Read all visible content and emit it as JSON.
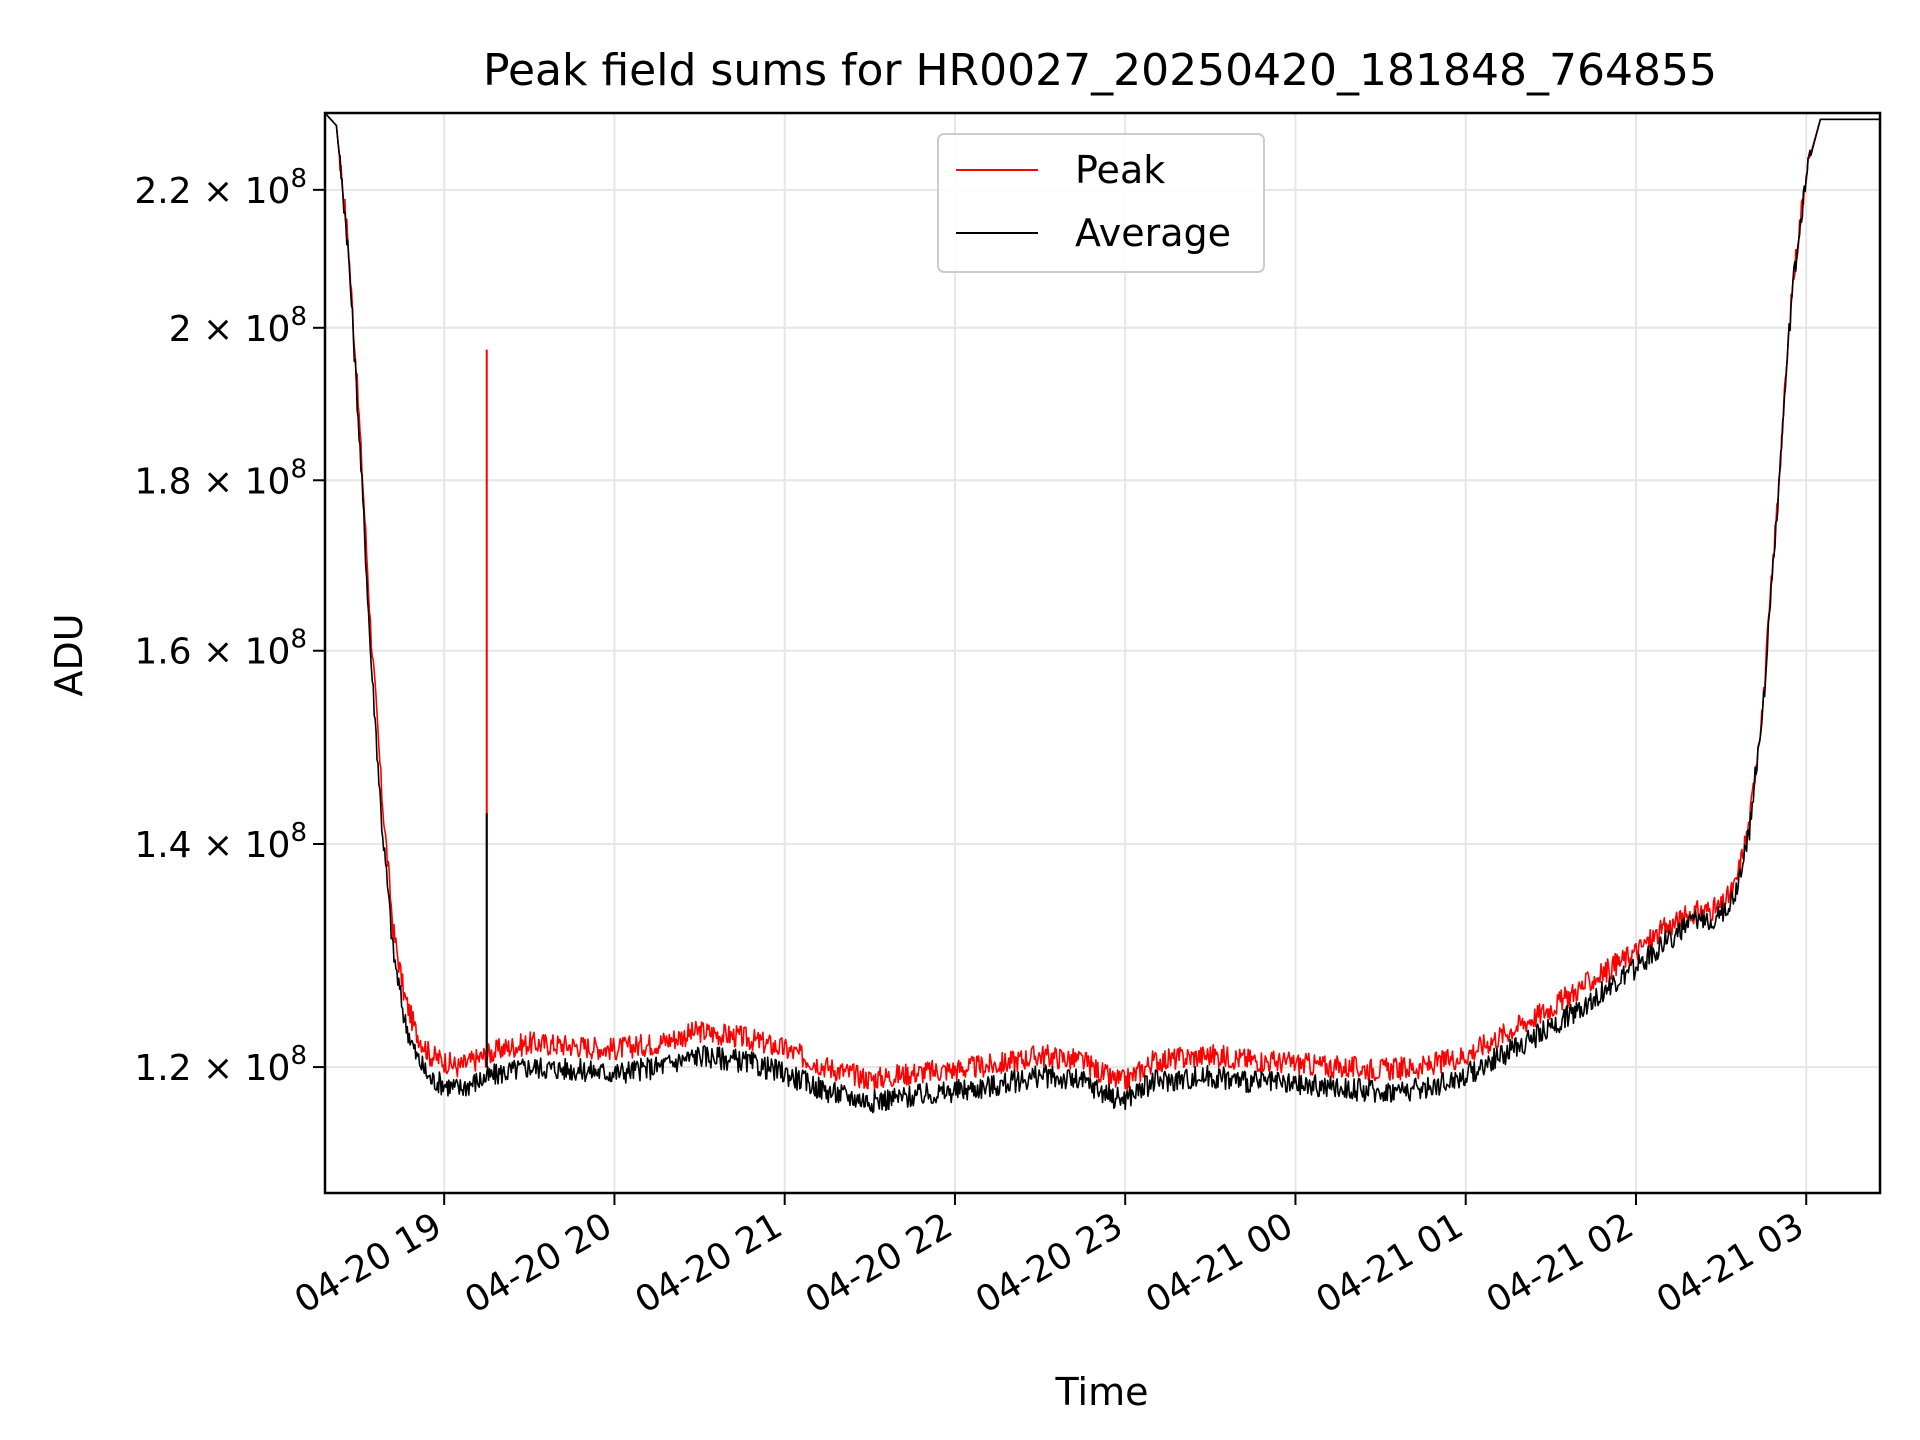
{
  "chart_data": {
    "type": "line",
    "title": "Peak field sums for HR0027_20250420_181848_764855",
    "xlabel": "Time",
    "ylabel": "ADU",
    "y_scale": "log",
    "xlim": [
      "2025-04-20T18:18",
      "2025-04-21T03:26"
    ],
    "ylim": [
      110000000,
      232000000
    ],
    "grid": true,
    "legend_position": "upper center",
    "x_ticks": [
      "04-20 19",
      "04-20 20",
      "04-20 21",
      "04-20 22",
      "04-20 23",
      "04-21 00",
      "04-21 01",
      "04-21 02",
      "04-21 03"
    ],
    "x_tick_times": [
      "2025-04-20T19:00",
      "2025-04-20T20:00",
      "2025-04-20T21:00",
      "2025-04-20T22:00",
      "2025-04-20T23:00",
      "2025-04-21T00:00",
      "2025-04-21T01:00",
      "2025-04-21T02:00",
      "2025-04-21T03:00"
    ],
    "y_ticks": [
      {
        "value": 120000000,
        "mantissa": "1.2",
        "exponent": "8"
      },
      {
        "value": 140000000,
        "mantissa": "1.4",
        "exponent": "8"
      },
      {
        "value": 160000000,
        "mantissa": "1.6",
        "exponent": "8"
      },
      {
        "value": 180000000,
        "mantissa": "1.8",
        "exponent": "8"
      },
      {
        "value": 200000000,
        "mantissa": "2",
        "exponent": "8"
      },
      {
        "value": 220000000,
        "mantissa": "2.2",
        "exponent": "8"
      }
    ],
    "tick_base": "10",
    "times_symbol": "×",
    "series": [
      {
        "name": "Peak",
        "color": "#ff0000",
        "x": [
          "2025-04-20T18:18",
          "2025-04-20T18:22",
          "2025-04-20T18:26",
          "2025-04-20T18:30",
          "2025-04-20T18:34",
          "2025-04-20T18:38",
          "2025-04-20T18:42",
          "2025-04-20T18:46",
          "2025-04-20T18:50",
          "2025-04-20T18:55",
          "2025-04-20T19:00",
          "2025-04-20T19:05",
          "2025-04-20T19:10",
          "2025-04-20T19:20",
          "2025-04-20T19:30",
          "2025-04-20T19:45",
          "2025-04-20T20:00",
          "2025-04-20T20:15",
          "2025-04-20T20:30",
          "2025-04-20T20:45",
          "2025-04-20T21:00",
          "2025-04-20T21:15",
          "2025-04-20T21:30",
          "2025-04-20T21:45",
          "2025-04-20T22:00",
          "2025-04-20T22:15",
          "2025-04-20T22:30",
          "2025-04-20T22:45",
          "2025-04-20T22:55",
          "2025-04-20T23:00",
          "2025-04-20T23:10",
          "2025-04-20T23:30",
          "2025-04-20T23:45",
          "2025-04-21T00:00",
          "2025-04-21T00:15",
          "2025-04-21T00:30",
          "2025-04-21T00:45",
          "2025-04-21T01:00",
          "2025-04-21T01:15",
          "2025-04-21T01:30",
          "2025-04-21T01:45",
          "2025-04-21T02:00",
          "2025-04-21T02:10",
          "2025-04-21T02:20",
          "2025-04-21T02:30",
          "2025-04-21T02:35",
          "2025-04-21T02:40",
          "2025-04-21T02:45",
          "2025-04-21T02:50",
          "2025-04-21T02:55",
          "2025-04-21T03:00",
          "2025-04-21T03:05",
          "2025-04-21T03:15",
          "2025-04-21T03:26"
        ],
        "y": [
          232000000,
          230000000,
          213000000,
          188000000,
          163000000,
          145000000,
          132000000,
          126000000,
          123000000,
          121000000,
          120500000,
          120000000,
          120500000,
          121500000,
          122000000,
          121800000,
          121500000,
          122000000,
          123000000,
          122500000,
          121500000,
          120000000,
          119000000,
          119500000,
          119800000,
          120200000,
          121000000,
          120500000,
          119000000,
          118800000,
          120500000,
          121000000,
          120600000,
          120300000,
          120000000,
          119800000,
          120000000,
          121000000,
          123000000,
          125000000,
          127500000,
          130000000,
          132000000,
          133500000,
          134000000,
          136000000,
          142000000,
          155000000,
          178000000,
          205000000,
          223000000,
          231000000,
          231000000,
          231000000
        ],
        "spike": {
          "x": "2025-04-20T19:15",
          "y": 197000000
        }
      },
      {
        "name": "Average",
        "color": "#000000",
        "x": [
          "2025-04-20T18:18",
          "2025-04-20T18:22",
          "2025-04-20T18:26",
          "2025-04-20T18:30",
          "2025-04-20T18:34",
          "2025-04-20T18:38",
          "2025-04-20T18:42",
          "2025-04-20T18:46",
          "2025-04-20T18:50",
          "2025-04-20T18:55",
          "2025-04-20T19:00",
          "2025-04-20T19:05",
          "2025-04-20T19:10",
          "2025-04-20T19:20",
          "2025-04-20T19:30",
          "2025-04-20T19:45",
          "2025-04-20T20:00",
          "2025-04-20T20:15",
          "2025-04-20T20:30",
          "2025-04-20T20:45",
          "2025-04-20T21:00",
          "2025-04-20T21:15",
          "2025-04-20T21:30",
          "2025-04-20T21:45",
          "2025-04-20T22:00",
          "2025-04-20T22:15",
          "2025-04-20T22:30",
          "2025-04-20T22:45",
          "2025-04-20T22:55",
          "2025-04-20T23:00",
          "2025-04-20T23:10",
          "2025-04-20T23:30",
          "2025-04-20T23:45",
          "2025-04-21T00:00",
          "2025-04-21T00:15",
          "2025-04-21T00:30",
          "2025-04-21T00:45",
          "2025-04-21T01:00",
          "2025-04-21T01:15",
          "2025-04-21T01:30",
          "2025-04-21T01:45",
          "2025-04-21T02:00",
          "2025-04-21T02:10",
          "2025-04-21T02:20",
          "2025-04-21T02:30",
          "2025-04-21T02:35",
          "2025-04-21T02:40",
          "2025-04-21T02:45",
          "2025-04-21T02:50",
          "2025-04-21T02:55",
          "2025-04-21T03:00",
          "2025-04-21T03:05",
          "2025-04-21T03:15",
          "2025-04-21T03:26"
        ],
        "y": [
          232000000,
          230000000,
          212000000,
          186000000,
          160000000,
          142000000,
          130000000,
          124000000,
          121000000,
          119000000,
          118600000,
          118200000,
          118700000,
          119500000,
          120000000,
          119800000,
          119500000,
          120000000,
          121000000,
          120500000,
          119500000,
          118000000,
          117200000,
          117600000,
          118000000,
          118500000,
          119300000,
          118800000,
          117600000,
          117400000,
          118800000,
          119200000,
          118800000,
          118500000,
          118300000,
          118000000,
          118200000,
          119300000,
          121300000,
          123300000,
          125800000,
          128500000,
          130800000,
          132600000,
          133300000,
          135200000,
          141500000,
          154500000,
          177500000,
          204500000,
          222500000,
          231000000,
          231000000,
          231000000
        ],
        "spike": {
          "x": "2025-04-20T19:15",
          "y": 143000000
        }
      }
    ]
  }
}
